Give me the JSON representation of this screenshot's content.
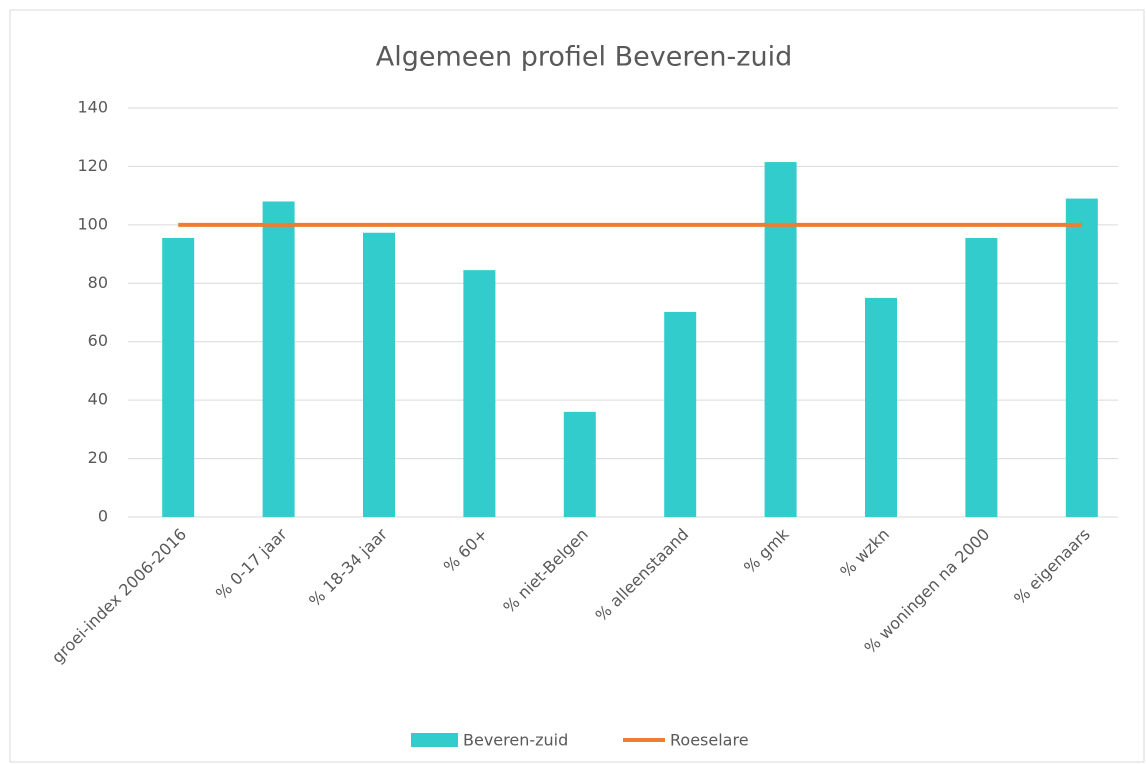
{
  "chart_data": {
    "type": "bar",
    "title": "Algemeen profiel Beveren-zuid",
    "categories": [
      "groei-index 2006-2016",
      "% 0-17 jaar",
      "% 18-34 jaar",
      "% 60+",
      "% niet-Belgen",
      "% alleenstaand",
      "% gmk",
      "% wzkn",
      "% woningen na 2000",
      "% eigenaars"
    ],
    "series": [
      {
        "name": "Beveren-zuid",
        "type": "bar",
        "color": "#33cccc",
        "values": [
          95.5,
          108,
          97.3,
          84.5,
          36,
          70.2,
          121.5,
          75,
          95.5,
          109
        ]
      },
      {
        "name": "Roeselare",
        "type": "line",
        "color": "#ed7d31",
        "values": [
          100,
          100,
          100,
          100,
          100,
          100,
          100,
          100,
          100,
          100
        ]
      }
    ],
    "ylim": [
      0,
      140
    ],
    "yticks": [
      0,
      20,
      40,
      60,
      80,
      100,
      120,
      140
    ],
    "grid": true,
    "legend": "bottom"
  }
}
